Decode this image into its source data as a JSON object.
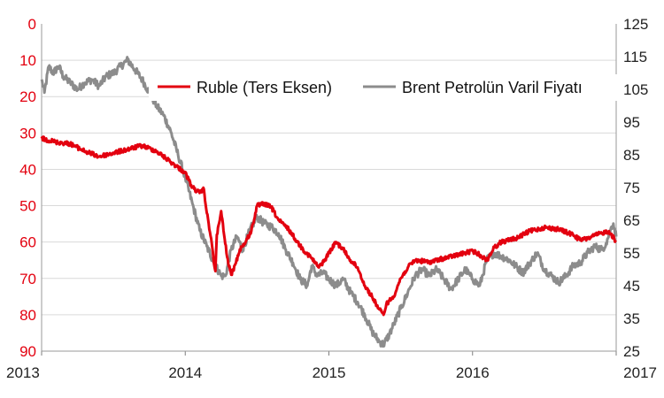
{
  "chart_data": {
    "type": "line",
    "x_ticks": [
      "2013",
      "2014",
      "2015",
      "2016",
      "2017"
    ],
    "x_range": [
      2013,
      2017
    ],
    "left_axis": {
      "ticks": [
        "0",
        "10",
        "20",
        "30",
        "40",
        "50",
        "60",
        "70",
        "80",
        "90"
      ],
      "range": [
        0,
        90
      ],
      "inverted": true,
      "color": "#e3000f"
    },
    "right_axis": {
      "ticks": [
        "125",
        "115",
        "105",
        "95",
        "85",
        "75",
        "65",
        "55",
        "45",
        "35",
        "25"
      ],
      "range": [
        25,
        125
      ],
      "color": "#222222"
    },
    "grid": "horizontal",
    "legend_position": "top-right",
    "series": [
      {
        "name": "Ruble (Ters Eksen)",
        "axis": "left",
        "color": "#e3000f",
        "points": [
          [
            2013.0,
            31.5
          ],
          [
            2013.1,
            32.5
          ],
          [
            2013.2,
            33.0
          ],
          [
            2013.3,
            35.0
          ],
          [
            2013.4,
            36.5
          ],
          [
            2013.5,
            35.5
          ],
          [
            2013.6,
            34.5
          ],
          [
            2013.7,
            33.5
          ],
          [
            2013.8,
            35.0
          ],
          [
            2013.9,
            38.0
          ],
          [
            2014.0,
            41.0
          ],
          [
            2014.05,
            45.0
          ],
          [
            2014.1,
            46.5
          ],
          [
            2014.13,
            45.5
          ],
          [
            2014.15,
            52.0
          ],
          [
            2014.18,
            59.0
          ],
          [
            2014.2,
            66.0
          ],
          [
            2014.21,
            68.0
          ],
          [
            2014.22,
            58.0
          ],
          [
            2014.24,
            54.0
          ],
          [
            2014.25,
            51.5
          ],
          [
            2014.27,
            58.0
          ],
          [
            2014.3,
            66.0
          ],
          [
            2014.32,
            69.0
          ],
          [
            2014.35,
            66.0
          ],
          [
            2014.38,
            62.0
          ],
          [
            2014.42,
            60.0
          ],
          [
            2014.46,
            57.0
          ],
          [
            2014.5,
            50.0
          ],
          [
            2014.55,
            49.5
          ],
          [
            2014.6,
            50.5
          ],
          [
            2014.65,
            54.0
          ],
          [
            2014.72,
            56.5
          ],
          [
            2014.78,
            60.0
          ],
          [
            2014.82,
            62.0
          ],
          [
            2014.88,
            64.5
          ],
          [
            2014.93,
            67.0
          ],
          [
            2014.97,
            65.0
          ],
          [
            2015.0,
            63.0
          ],
          [
            2015.05,
            60.0
          ],
          [
            2015.1,
            62.0
          ],
          [
            2015.15,
            65.0
          ],
          [
            2015.2,
            67.0
          ],
          [
            2015.25,
            72.0
          ],
          [
            2015.3,
            75.0
          ],
          [
            2015.35,
            78.5
          ],
          [
            2015.38,
            80.0
          ],
          [
            2015.4,
            77.0
          ],
          [
            2015.45,
            75.0
          ],
          [
            2015.5,
            70.0
          ],
          [
            2015.55,
            67.0
          ],
          [
            2015.6,
            65.0
          ],
          [
            2015.7,
            65.5
          ],
          [
            2015.8,
            64.5
          ],
          [
            2015.9,
            63.5
          ],
          [
            2016.0,
            62.5
          ],
          [
            2016.05,
            63.5
          ],
          [
            2016.1,
            65.0
          ],
          [
            2016.15,
            61.5
          ],
          [
            2016.2,
            60.0
          ],
          [
            2016.3,
            59.0
          ],
          [
            2016.4,
            57.0
          ],
          [
            2016.5,
            56.0
          ],
          [
            2016.6,
            56.5
          ],
          [
            2016.7,
            58.0
          ],
          [
            2016.75,
            59.5
          ],
          [
            2016.8,
            59.0
          ],
          [
            2016.9,
            57.5
          ],
          [
            2016.95,
            57.0
          ],
          [
            2017.0,
            60.0
          ]
        ]
      },
      {
        "name": "Brent Petrolün Varil Fiyatı",
        "axis": "right",
        "color": "#8c8c8c",
        "points": [
          [
            2013.0,
            108.0
          ],
          [
            2013.02,
            104.0
          ],
          [
            2013.05,
            112.0
          ],
          [
            2013.08,
            110.0
          ],
          [
            2013.12,
            112.0
          ],
          [
            2013.15,
            109.0
          ],
          [
            2013.2,
            107.0
          ],
          [
            2013.25,
            105.0
          ],
          [
            2013.3,
            107.0
          ],
          [
            2013.35,
            108.0
          ],
          [
            2013.4,
            106.0
          ],
          [
            2013.45,
            109.0
          ],
          [
            2013.5,
            110.0
          ],
          [
            2013.55,
            112.0
          ],
          [
            2013.6,
            114.0
          ],
          [
            2013.65,
            111.0
          ],
          [
            2013.7,
            108.0
          ],
          [
            2013.75,
            104.0
          ],
          [
            2013.8,
            100.0
          ],
          [
            2013.85,
            97.0
          ],
          [
            2013.9,
            92.0
          ],
          [
            2013.95,
            85.0
          ],
          [
            2014.0,
            78.0
          ],
          [
            2014.05,
            70.0
          ],
          [
            2014.1,
            62.0
          ],
          [
            2014.15,
            57.0
          ],
          [
            2014.2,
            52.0
          ],
          [
            2014.25,
            48.0
          ],
          [
            2014.28,
            48.0
          ],
          [
            2014.32,
            56.0
          ],
          [
            2014.36,
            60.0
          ],
          [
            2014.4,
            56.0
          ],
          [
            2014.45,
            62.0
          ],
          [
            2014.5,
            66.0
          ],
          [
            2014.55,
            64.0
          ],
          [
            2014.6,
            63.0
          ],
          [
            2014.65,
            61.0
          ],
          [
            2014.7,
            56.0
          ],
          [
            2014.75,
            52.0
          ],
          [
            2014.8,
            47.0
          ],
          [
            2014.85,
            45.0
          ],
          [
            2014.88,
            51.0
          ],
          [
            2014.92,
            48.0
          ],
          [
            2014.96,
            49.0
          ],
          [
            2015.0,
            47.0
          ],
          [
            2015.05,
            45.0
          ],
          [
            2015.1,
            47.0
          ],
          [
            2015.15,
            43.0
          ],
          [
            2015.2,
            40.0
          ],
          [
            2015.25,
            36.0
          ],
          [
            2015.3,
            31.0
          ],
          [
            2015.35,
            28.0
          ],
          [
            2015.38,
            27.0
          ],
          [
            2015.42,
            30.0
          ],
          [
            2015.45,
            33.0
          ],
          [
            2015.5,
            38.0
          ],
          [
            2015.55,
            43.0
          ],
          [
            2015.6,
            48.0
          ],
          [
            2015.65,
            50.0
          ],
          [
            2015.7,
            48.0
          ],
          [
            2015.75,
            50.0
          ],
          [
            2015.8,
            47.0
          ],
          [
            2015.85,
            44.0
          ],
          [
            2015.9,
            47.0
          ],
          [
            2015.95,
            50.0
          ],
          [
            2016.0,
            47.0
          ],
          [
            2016.05,
            45.0
          ],
          [
            2016.1,
            53.0
          ],
          [
            2016.15,
            55.0
          ],
          [
            2016.2,
            54.0
          ],
          [
            2016.25,
            53.0
          ],
          [
            2016.3,
            51.0
          ],
          [
            2016.35,
            49.0
          ],
          [
            2016.4,
            52.0
          ],
          [
            2016.45,
            55.0
          ],
          [
            2016.5,
            50.0
          ],
          [
            2016.55,
            48.0
          ],
          [
            2016.6,
            46.0
          ],
          [
            2016.65,
            48.0
          ],
          [
            2016.7,
            51.0
          ],
          [
            2016.75,
            52.0
          ],
          [
            2016.8,
            55.0
          ],
          [
            2016.85,
            57.0
          ],
          [
            2016.9,
            56.0
          ],
          [
            2016.93,
            58.0
          ],
          [
            2016.96,
            62.0
          ],
          [
            2016.98,
            64.0
          ],
          [
            2017.0,
            60.0
          ]
        ]
      }
    ]
  }
}
